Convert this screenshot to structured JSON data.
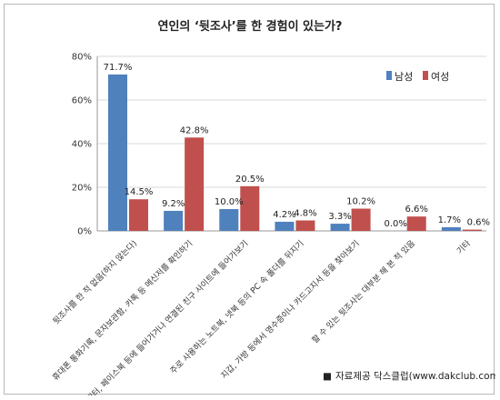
{
  "chart_data": {
    "type": "bar",
    "title": "연인의 ‘뒷조사’를 한 경험이 있는가?",
    "categories": [
      "뒷조사를 한 적 없음(하지 않는다)",
      "휴대폰 통화기록, 문자보관함, 카톡 등 메신저를 확인하기",
      "트위터, 페이스북 등에 들어가거나 연결된 친구 사이트에 들어가보기",
      "주로 사용하는 노트북, 넷북 등의 PC 속 폴더를 뒤지기",
      "지갑, 가방 등에서 영수증이나 카드고지서 등을 찾아보기",
      "할 수 있는 뒷조사는 대부분 해 본 적 있음",
      "기타"
    ],
    "series": [
      {
        "name": "남성",
        "color": "#4f81bd",
        "values": [
          71.7,
          9.2,
          10.0,
          4.2,
          3.3,
          0.0,
          1.7
        ],
        "labels": [
          "71.7%",
          "9.2%",
          "10.0%",
          "4.2%",
          "3.3%",
          "0.0%",
          "1.7%"
        ]
      },
      {
        "name": "여성",
        "color": "#c0504d",
        "values": [
          14.5,
          42.8,
          20.5,
          4.8,
          10.2,
          6.6,
          0.6
        ],
        "labels": [
          "14.5%",
          "42.8%",
          "20.5%",
          "4.8%",
          "10.2%",
          "6.6%",
          "0.6%"
        ]
      }
    ],
    "yticks": [
      "0%",
      "20%",
      "40%",
      "60%",
      "80%"
    ],
    "ylim": [
      0,
      80
    ],
    "grid": true,
    "legend_position": "top-right"
  },
  "source": {
    "marker": "■",
    "text": "자료제공 닥스클럽(www.dakclub.com)"
  }
}
